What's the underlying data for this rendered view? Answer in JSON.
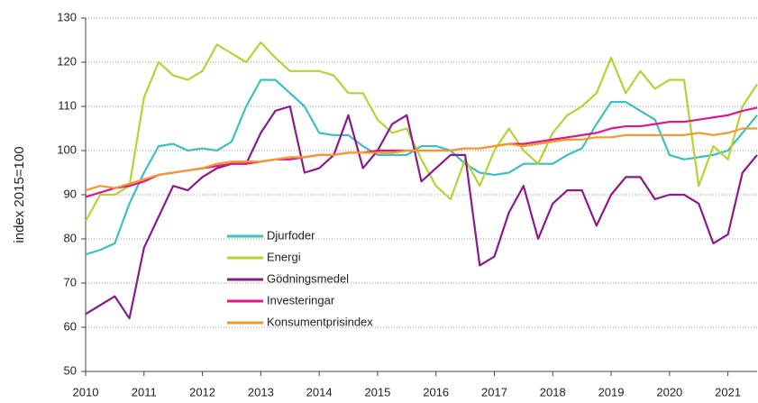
{
  "chart_data": {
    "type": "line",
    "y_label": "index 2015=100",
    "x": [
      2010,
      2010.25,
      2010.5,
      2010.75,
      2011,
      2011.25,
      2011.5,
      2011.75,
      2012,
      2012.25,
      2012.5,
      2012.75,
      2013,
      2013.25,
      2013.5,
      2013.75,
      2014,
      2014.25,
      2014.5,
      2014.75,
      2015,
      2015.25,
      2015.5,
      2015.75,
      2016,
      2016.25,
      2016.5,
      2016.75,
      2017,
      2017.25,
      2017.5,
      2017.75,
      2018,
      2018.25,
      2018.5,
      2018.75,
      2019,
      2019.25,
      2019.5,
      2019.75,
      2020,
      2020.25,
      2020.5,
      2020.75,
      2021,
      2021.25,
      2021.5
    ],
    "series": [
      {
        "name": "Djurfoder",
        "color": "#3cc0c0",
        "values": [
          76.5,
          77.5,
          79,
          88,
          95,
          101,
          101.5,
          100,
          100.5,
          100,
          102,
          110,
          116,
          116,
          113,
          110,
          104,
          103.5,
          103.5,
          101,
          99,
          99,
          99,
          101,
          101,
          100,
          97,
          95,
          94.5,
          95,
          97,
          97,
          97,
          99,
          100.5,
          106,
          111,
          111,
          109,
          107,
          99,
          98,
          98.5,
          99,
          100,
          104,
          108
        ]
      },
      {
        "name": "Energi",
        "color": "#b5d334",
        "values": [
          84,
          90,
          90,
          92,
          112,
          120,
          117,
          116,
          118,
          124,
          122,
          120,
          124.5,
          121,
          118,
          118,
          118,
          117,
          113,
          113,
          107,
          104,
          105,
          98,
          92,
          89,
          98,
          92,
          100,
          105,
          100,
          97,
          104,
          108,
          110,
          113,
          121,
          113,
          118,
          114,
          116,
          116,
          92,
          101,
          98,
          110,
          115
        ]
      },
      {
        "name": "Gödningsmedel",
        "color": "#8b1a8b",
        "values": [
          63,
          65,
          67,
          62,
          78,
          85,
          92,
          91,
          94,
          96,
          97,
          97,
          104,
          109,
          110,
          95,
          96,
          99,
          108,
          96,
          100,
          106,
          108,
          93,
          96,
          99,
          99,
          74,
          76,
          86,
          92,
          80,
          88,
          91,
          91,
          83,
          90,
          94,
          94,
          89,
          90,
          90,
          88,
          79,
          81,
          95,
          99
        ]
      },
      {
        "name": "Investeringar",
        "color": "#e0168a",
        "values": [
          89.5,
          90.5,
          91.5,
          92,
          93,
          94.5,
          95,
          95.5,
          96,
          96.5,
          97,
          97,
          97.5,
          98,
          98,
          98.5,
          99,
          99,
          99.5,
          99.5,
          100,
          100,
          100,
          100,
          100,
          100,
          100.5,
          100.5,
          101,
          101.5,
          101.5,
          102,
          102.5,
          103,
          103.5,
          104,
          105,
          105.5,
          105.5,
          106,
          106.5,
          106.5,
          107,
          107.5,
          108,
          109,
          109.7
        ]
      },
      {
        "name": "Konsumentprisindex",
        "color": "#f39a2a",
        "values": [
          91,
          92,
          91.5,
          92.5,
          93.5,
          94.5,
          95,
          95.5,
          96,
          97,
          97.5,
          97.5,
          97.5,
          98,
          98.5,
          98.5,
          99,
          99,
          99.5,
          99.5,
          99.5,
          99.5,
          100,
          100,
          100,
          100,
          100.5,
          100.5,
          101,
          101.5,
          101,
          101.5,
          102,
          102.5,
          102.5,
          103,
          103,
          103.5,
          103.5,
          103.5,
          103.5,
          103.5,
          104,
          103.5,
          104,
          105,
          105
        ]
      }
    ],
    "xlim": [
      2010,
      2021.5
    ],
    "xticks": [
      2010,
      2011,
      2012,
      2013,
      2014,
      2015,
      2016,
      2017,
      2018,
      2019,
      2020,
      2021
    ],
    "ylim": [
      50,
      130
    ],
    "yticks": [
      50,
      60,
      70,
      80,
      90,
      100,
      110,
      120,
      130
    ],
    "grid": true
  }
}
